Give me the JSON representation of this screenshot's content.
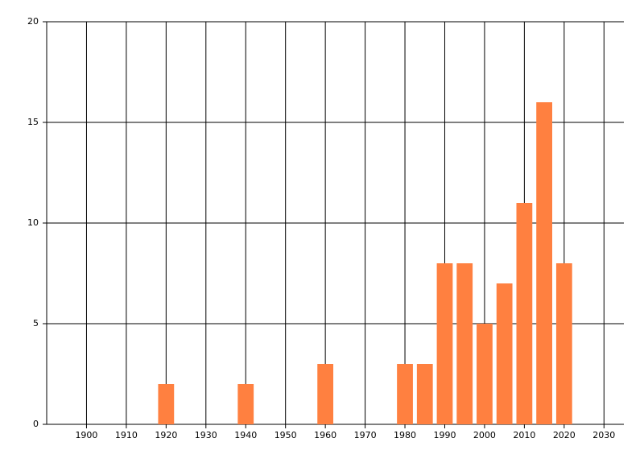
{
  "chart_data": {
    "type": "bar",
    "x": [
      1920,
      1940,
      1960,
      1980,
      1985,
      1990,
      1995,
      2000,
      2005,
      2010,
      2015,
      2020
    ],
    "values": [
      2,
      2,
      3,
      3,
      3,
      8,
      8,
      5,
      7,
      11,
      16,
      8
    ],
    "color": "#ff8040",
    "xlim": [
      1890,
      2035
    ],
    "xticks": [
      1900,
      1910,
      1920,
      1930,
      1940,
      1950,
      1960,
      1970,
      1980,
      1990,
      2000,
      2010,
      2020,
      2030
    ],
    "ylim": [
      0,
      20
    ],
    "yticks": [
      0,
      5,
      10,
      15,
      20
    ],
    "grid": true
  }
}
